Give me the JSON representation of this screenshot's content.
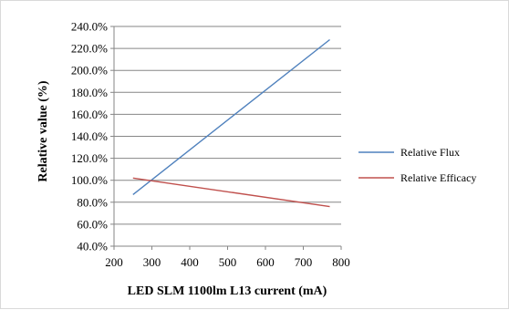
{
  "chart_data": {
    "type": "line",
    "title": "",
    "xlabel": "LED SLM 1100lm L13 current (mA)",
    "ylabel": "Relative value (%)",
    "xlim": [
      200,
      800
    ],
    "ylim": [
      40,
      240
    ],
    "x_ticks": [
      200,
      300,
      400,
      500,
      600,
      700,
      800
    ],
    "x_tick_labels": [
      "200",
      "300",
      "400",
      "500",
      "600",
      "700",
      "800"
    ],
    "y_ticks": [
      40,
      60,
      80,
      100,
      120,
      140,
      160,
      180,
      200,
      220,
      240
    ],
    "y_tick_labels": [
      "40.0%",
      "60.0%",
      "80.0%",
      "100.0%",
      "120.0%",
      "140.0%",
      "160.0%",
      "180.0%",
      "200.0%",
      "220.0%",
      "240.0%"
    ],
    "grid": "horizontal",
    "legend_position": "right",
    "series": [
      {
        "name": "Relative Flux",
        "color": "#4f81bd",
        "x": [
          250,
          770
        ],
        "y": [
          87,
          228
        ]
      },
      {
        "name": "Relative Efficacy",
        "color": "#c0504d",
        "x": [
          250,
          770
        ],
        "y": [
          102,
          76
        ]
      }
    ]
  }
}
